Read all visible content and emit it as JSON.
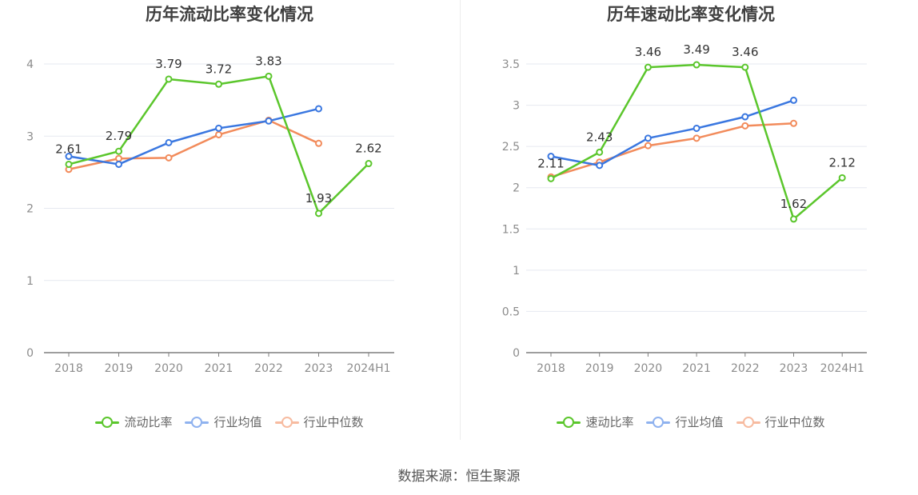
{
  "source_note": "数据来源：恒生聚源",
  "colors": {
    "green": "#5bc62c",
    "blue": "#3a77e0",
    "orange": "#f28b5b",
    "axis": "#8c8c8c",
    "grid": "#e6e9f0"
  },
  "legend_colors": {
    "green": "#5bc62c",
    "blue": "#8fb2ef",
    "orange": "#f7bba0"
  },
  "chart_data": [
    {
      "type": "line",
      "title": "历年流动比率变化情况",
      "categories": [
        "2018",
        "2019",
        "2020",
        "2021",
        "2022",
        "2023",
        "2024H1"
      ],
      "ylim": [
        0,
        4
      ],
      "yticks": [
        0,
        1,
        2,
        3,
        4
      ],
      "grid": true,
      "legend_position": "bottom",
      "series": [
        {
          "name": "流动比率",
          "color": "#5bc62c",
          "labels": true,
          "values": [
            2.61,
            2.79,
            3.79,
            3.72,
            3.83,
            1.93,
            2.62
          ]
        },
        {
          "name": "行业均值",
          "color": "#3a77e0",
          "labels": false,
          "values": [
            2.72,
            2.61,
            2.91,
            3.11,
            3.21,
            3.38,
            null
          ]
        },
        {
          "name": "行业中位数",
          "color": "#f28b5b",
          "labels": false,
          "values": [
            2.54,
            2.69,
            2.7,
            3.02,
            3.22,
            2.9,
            null
          ]
        }
      ]
    },
    {
      "type": "line",
      "title": "历年速动比率变化情况",
      "categories": [
        "2018",
        "2019",
        "2020",
        "2021",
        "2022",
        "2023",
        "2024H1"
      ],
      "ylim": [
        0,
        3.5
      ],
      "yticks": [
        0,
        0.5,
        1,
        1.5,
        2,
        2.5,
        3,
        3.5
      ],
      "grid": true,
      "legend_position": "bottom",
      "series": [
        {
          "name": "速动比率",
          "color": "#5bc62c",
          "labels": true,
          "values": [
            2.11,
            2.43,
            3.46,
            3.49,
            3.46,
            1.62,
            2.12
          ]
        },
        {
          "name": "行业均值",
          "color": "#3a77e0",
          "labels": false,
          "values": [
            2.38,
            2.27,
            2.6,
            2.72,
            2.86,
            3.06,
            null
          ]
        },
        {
          "name": "行业中位数",
          "color": "#f28b5b",
          "labels": false,
          "values": [
            2.13,
            2.31,
            2.51,
            2.6,
            2.75,
            2.78,
            null
          ]
        }
      ]
    }
  ]
}
